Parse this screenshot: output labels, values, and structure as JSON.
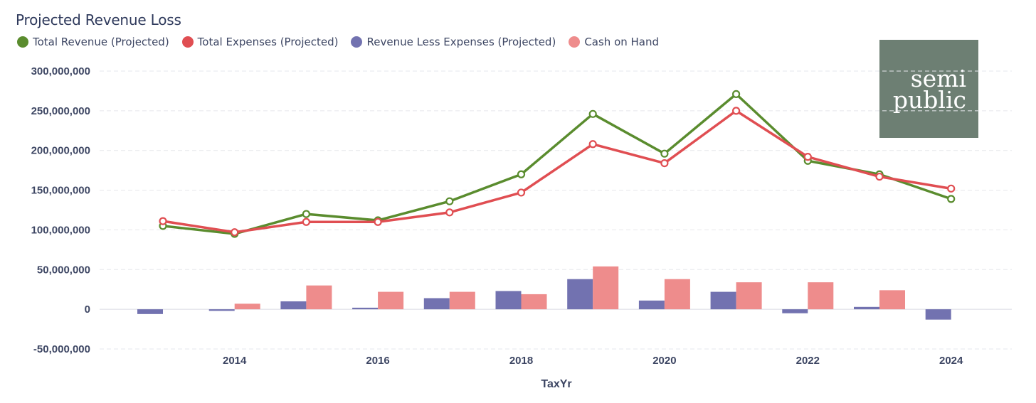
{
  "chart_data": {
    "type": "bar+line",
    "title": "Projected Revenue Loss",
    "xlabel": "TaxYr",
    "ylabel": "",
    "ylim": [
      -50000000,
      300000000
    ],
    "y_ticks": [
      300000000,
      250000000,
      200000000,
      150000000,
      100000000,
      50000000,
      0,
      -50000000
    ],
    "y_tick_labels": [
      "300,000,000",
      "250,000,000",
      "200,000,000",
      "150,000,000",
      "100,000,000",
      "50,000,000",
      "0",
      "-50,000,000"
    ],
    "x_tick_labels": [
      "2014",
      "2016",
      "2018",
      "2020",
      "2022",
      "2024"
    ],
    "x": [
      2013,
      2014,
      2015,
      2016,
      2017,
      2018,
      2019,
      2020,
      2021,
      2022,
      2023,
      2024
    ],
    "grid": true,
    "legend_position": "top-left",
    "series": [
      {
        "name": "Total Revenue (Projected)",
        "kind": "line",
        "color": "#5a8c2e",
        "values": [
          105000000,
          95000000,
          120000000,
          112000000,
          136000000,
          170000000,
          246000000,
          196000000,
          271000000,
          187000000,
          170000000,
          139000000
        ]
      },
      {
        "name": "Total Expenses (Projected)",
        "kind": "line",
        "color": "#e04e52",
        "values": [
          111000000,
          97000000,
          110000000,
          110000000,
          122000000,
          147000000,
          208000000,
          184000000,
          250000000,
          192000000,
          167000000,
          152000000
        ]
      },
      {
        "name": "Revenue Less Expenses (Projected)",
        "kind": "bar",
        "color": "#7272b0",
        "values": [
          -6000000,
          -2000000,
          10000000,
          2000000,
          14000000,
          23000000,
          38000000,
          11000000,
          22000000,
          -5000000,
          3000000,
          -13000000
        ]
      },
      {
        "name": "Cash on Hand",
        "kind": "bar",
        "color": "#ee8c8c",
        "values": [
          null,
          7000000,
          30000000,
          22000000,
          22000000,
          19000000,
          54000000,
          38000000,
          34000000,
          34000000,
          24000000,
          null
        ]
      }
    ]
  },
  "logo": {
    "line1": "semi",
    "line2": "public"
  }
}
